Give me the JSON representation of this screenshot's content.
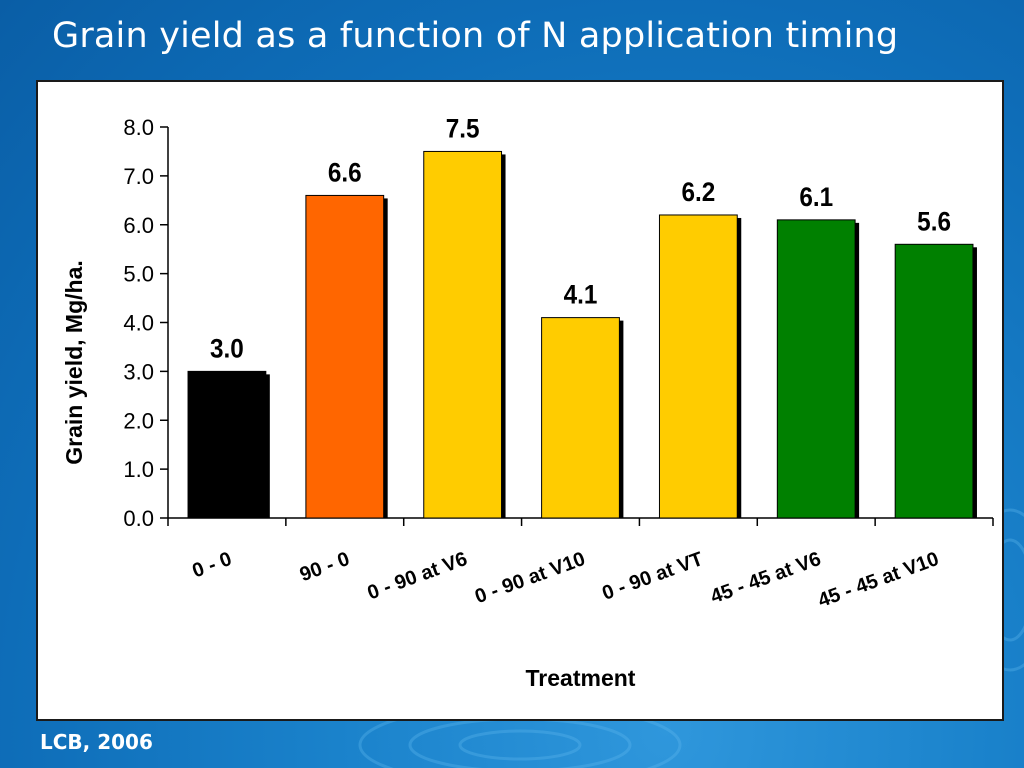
{
  "slide": {
    "title": "Grain yield as a function of N application timing",
    "footer": "LCB, 2006"
  },
  "chart_data": {
    "type": "bar",
    "title": "",
    "xlabel": "Treatment",
    "ylabel": "Grain yield, Mg/ha.",
    "ylim": [
      0,
      8
    ],
    "yticks": [
      "0.0",
      "1.0",
      "2.0",
      "3.0",
      "4.0",
      "5.0",
      "6.0",
      "7.0",
      "8.0"
    ],
    "categories": [
      "0 - 0",
      "90 - 0",
      "0 - 90 at V6",
      "0 - 90 at V10",
      "0 - 90 at VT",
      "45 - 45 at V6",
      "45 - 45 at V10"
    ],
    "values": [
      3.0,
      6.6,
      7.5,
      4.1,
      6.2,
      6.1,
      5.6
    ],
    "value_labels": [
      "3.0",
      "6.6",
      "7.5",
      "4.1",
      "6.2",
      "6.1",
      "5.6"
    ],
    "bar_colors": [
      "#000000",
      "#ff6600",
      "#ffcc00",
      "#ffcc00",
      "#ffcc00",
      "#008000",
      "#008000"
    ],
    "grid": false,
    "legend": "none"
  }
}
